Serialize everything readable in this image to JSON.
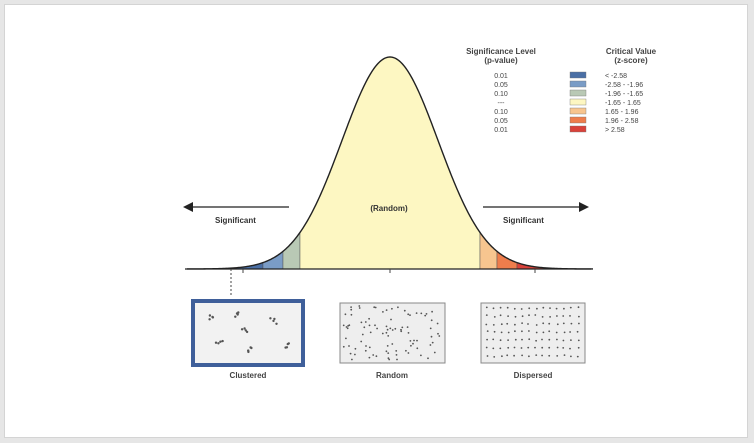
{
  "legend": {
    "sig_header": "Significance Level",
    "sig_subheader": "(p-value)",
    "crit_header": "Critical Value",
    "crit_subheader": "(z-score)",
    "rows": [
      {
        "p": "0.01",
        "z": "< -2.58",
        "color": "#4a6fa5"
      },
      {
        "p": "0.05",
        "z": "-2.58 - -1.96",
        "color": "#7a9cc6"
      },
      {
        "p": "0.10",
        "z": "-1.96 - -1.65",
        "color": "#b9c9b5"
      },
      {
        "p": "---",
        "z": "-1.65 - 1.65",
        "color": "#fdf7c2"
      },
      {
        "p": "0.10",
        "z": "1.65 - 1.96",
        "color": "#f7c58f"
      },
      {
        "p": "0.05",
        "z": "1.96 - 2.58",
        "color": "#ee7d4c"
      },
      {
        "p": "0.01",
        "z": "> 2.58",
        "color": "#d9423a"
      }
    ]
  },
  "curve": {
    "center_label": "(Random)",
    "left_label": "Significant",
    "right_label": "Significant"
  },
  "panels": {
    "clustered": "Clustered",
    "random": "Random",
    "dispersed": "Dispersed"
  }
}
